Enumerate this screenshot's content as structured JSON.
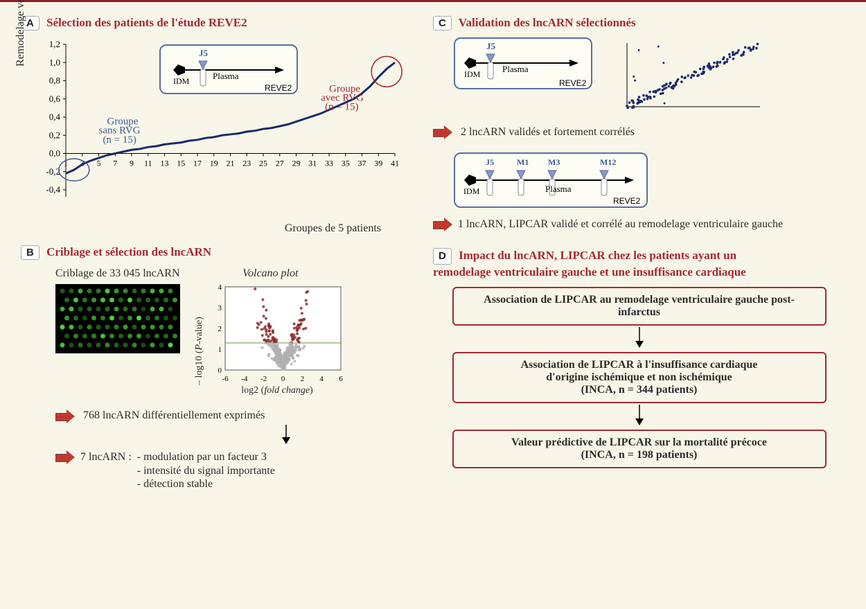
{
  "panelA": {
    "letter": "A",
    "title": "Sélection des patients de l'étude REVE2",
    "ylabel": "Remodelage ventriculaire gauche",
    "xlabel": "Groupes de 5 patients",
    "yticks": [
      "1,2",
      "1,0",
      "0,8",
      "0,6",
      "0,4",
      "0,2",
      "0,0",
      "-0,2",
      "-0,4"
    ],
    "ylim": [
      -0.4,
      1.2
    ],
    "xticks": [
      "1",
      "3",
      "5",
      "7",
      "9",
      "11",
      "13",
      "15",
      "17",
      "19",
      "21",
      "23",
      "25",
      "27",
      "29",
      "31",
      "33",
      "35",
      "37",
      "39",
      "41"
    ],
    "curve_color": "#1a2a6c",
    "curve_data": [
      [
        1,
        -0.22
      ],
      [
        2,
        -0.18
      ],
      [
        3,
        -0.12
      ],
      [
        4,
        -0.08
      ],
      [
        5,
        -0.05
      ],
      [
        6,
        -0.02
      ],
      [
        7,
        0.0
      ],
      [
        8,
        0.02
      ],
      [
        9,
        0.04
      ],
      [
        10,
        0.05
      ],
      [
        11,
        0.07
      ],
      [
        12,
        0.08
      ],
      [
        13,
        0.1
      ],
      [
        14,
        0.11
      ],
      [
        15,
        0.12
      ],
      [
        16,
        0.14
      ],
      [
        17,
        0.15
      ],
      [
        18,
        0.17
      ],
      [
        19,
        0.18
      ],
      [
        20,
        0.2
      ],
      [
        21,
        0.21
      ],
      [
        22,
        0.22
      ],
      [
        23,
        0.24
      ],
      [
        24,
        0.25
      ],
      [
        25,
        0.27
      ],
      [
        26,
        0.28
      ],
      [
        27,
        0.3
      ],
      [
        28,
        0.32
      ],
      [
        29,
        0.35
      ],
      [
        30,
        0.38
      ],
      [
        31,
        0.41
      ],
      [
        32,
        0.44
      ],
      [
        33,
        0.48
      ],
      [
        34,
        0.52
      ],
      [
        35,
        0.56
      ],
      [
        36,
        0.6
      ],
      [
        37,
        0.66
      ],
      [
        38,
        0.74
      ],
      [
        39,
        0.84
      ],
      [
        40,
        0.93
      ],
      [
        41,
        1.0
      ]
    ],
    "group1_label": "Groupe\nsans RVG\n(n = 15)",
    "group1_color": "#3b5998",
    "group2_label": "Groupe\navec RVG\n(n = 15)",
    "group2_color": "#a62834",
    "inset": {
      "idm": "IDM",
      "j5": "J5",
      "plasma": "Plasma",
      "study": "REVE2"
    }
  },
  "panelB": {
    "letter": "B",
    "title": "Criblage et sélection des lncARN",
    "screening": "Criblage de 33 045 lncARN",
    "volcano_label": "Volcano plot",
    "volcano_ylabel": "– log10 (P-value)",
    "volcano_xlabel": "log2 (fold change)",
    "volcano_xlim": [
      -6,
      6
    ],
    "volcano_ylim": [
      0,
      4
    ],
    "volcano_xticks": [
      "-6",
      "-4",
      "-2",
      "0",
      "2",
      "4",
      "6"
    ],
    "volcano_yticks": [
      "0",
      "1",
      "2",
      "3",
      "4"
    ],
    "sig_color": "#8b2e2e",
    "nonsig_color": "#b0b0b0",
    "line1": "768 lncARN différentiellement exprimés",
    "line2": "7 lncARN :",
    "bullets": [
      "- modulation par un facteur 3",
      "- intensité du signal importante",
      "- détection stable"
    ]
  },
  "panelC": {
    "letter": "C",
    "title": "Validation des lncARN sélectionnés",
    "inset1": {
      "idm": "IDM",
      "j5": "J5",
      "plasma": "Plasma",
      "study": "REVE2"
    },
    "scatter_color": "#1a2a6c",
    "text1": "2 lncARN validés et fortement corrélés",
    "inset2": {
      "idm": "IDM",
      "timepoints": [
        "J5",
        "M1",
        "M3",
        "M12"
      ],
      "plasma": "Plasma",
      "study": "REVE2"
    },
    "text2": "1 lncARN, LIPCAR validé et corrélé au remodelage ventriculaire gauche"
  },
  "panelD": {
    "letter": "D",
    "title": "Impact du lncARN, LIPCAR chez les patients ayant un remodelage ventriculaire gauche et une insuffisance cardiaque",
    "box1": "Association de LIPCAR au remodelage ventriculaire gauche post-infarctus",
    "box2_l1": "Association de LIPCAR à l'insuffisance cardiaque",
    "box2_l2": "d'origine ischémique et non ischémique",
    "box2_l3": "(INCA, n = 344 patients)",
    "box3_l1": "Valeur prédictive de LIPCAR sur la mortalité précoce",
    "box3_l2": "(INCA, n = 198 patients)"
  },
  "colors": {
    "title": "#a62834",
    "background": "#f8f6e8",
    "border": "#8a1f2c"
  }
}
